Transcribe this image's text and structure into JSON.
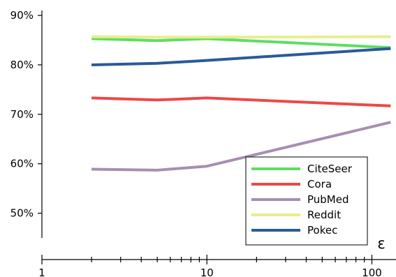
{
  "chart_data": {
    "type": "line",
    "xlabel": "ε",
    "ylabel": "",
    "x_scale": "log",
    "xlim": [
      1,
      140
    ],
    "ylim": [
      45,
      91
    ],
    "x_ticks": [
      1,
      10,
      100
    ],
    "x_tick_labels": [
      "1",
      "10",
      "100"
    ],
    "y_ticks": [
      50,
      60,
      70,
      80,
      90
    ],
    "y_tick_labels": [
      "50%",
      "60%",
      "70%",
      "80%",
      "90%"
    ],
    "grid": false,
    "legend_position": "bottom-right",
    "x": [
      2,
      5,
      10,
      130
    ],
    "series": [
      {
        "name": "CiteSeer",
        "color": "#5fdd63",
        "values": [
          85.3,
          84.9,
          85.3,
          83.5
        ]
      },
      {
        "name": "Cora",
        "color": "#ef4747",
        "values": [
          73.3,
          72.9,
          73.3,
          71.7
        ]
      },
      {
        "name": "PubMed",
        "color": "#a68fb0",
        "values": [
          58.9,
          58.7,
          59.5,
          68.4
        ]
      },
      {
        "name": "Reddit",
        "color": "#e8ee8e",
        "values": [
          85.7,
          85.6,
          85.6,
          85.7
        ]
      },
      {
        "name": "Pokec",
        "color": "#2a5b97",
        "values": [
          80.0,
          80.3,
          80.9,
          83.3
        ]
      }
    ]
  }
}
